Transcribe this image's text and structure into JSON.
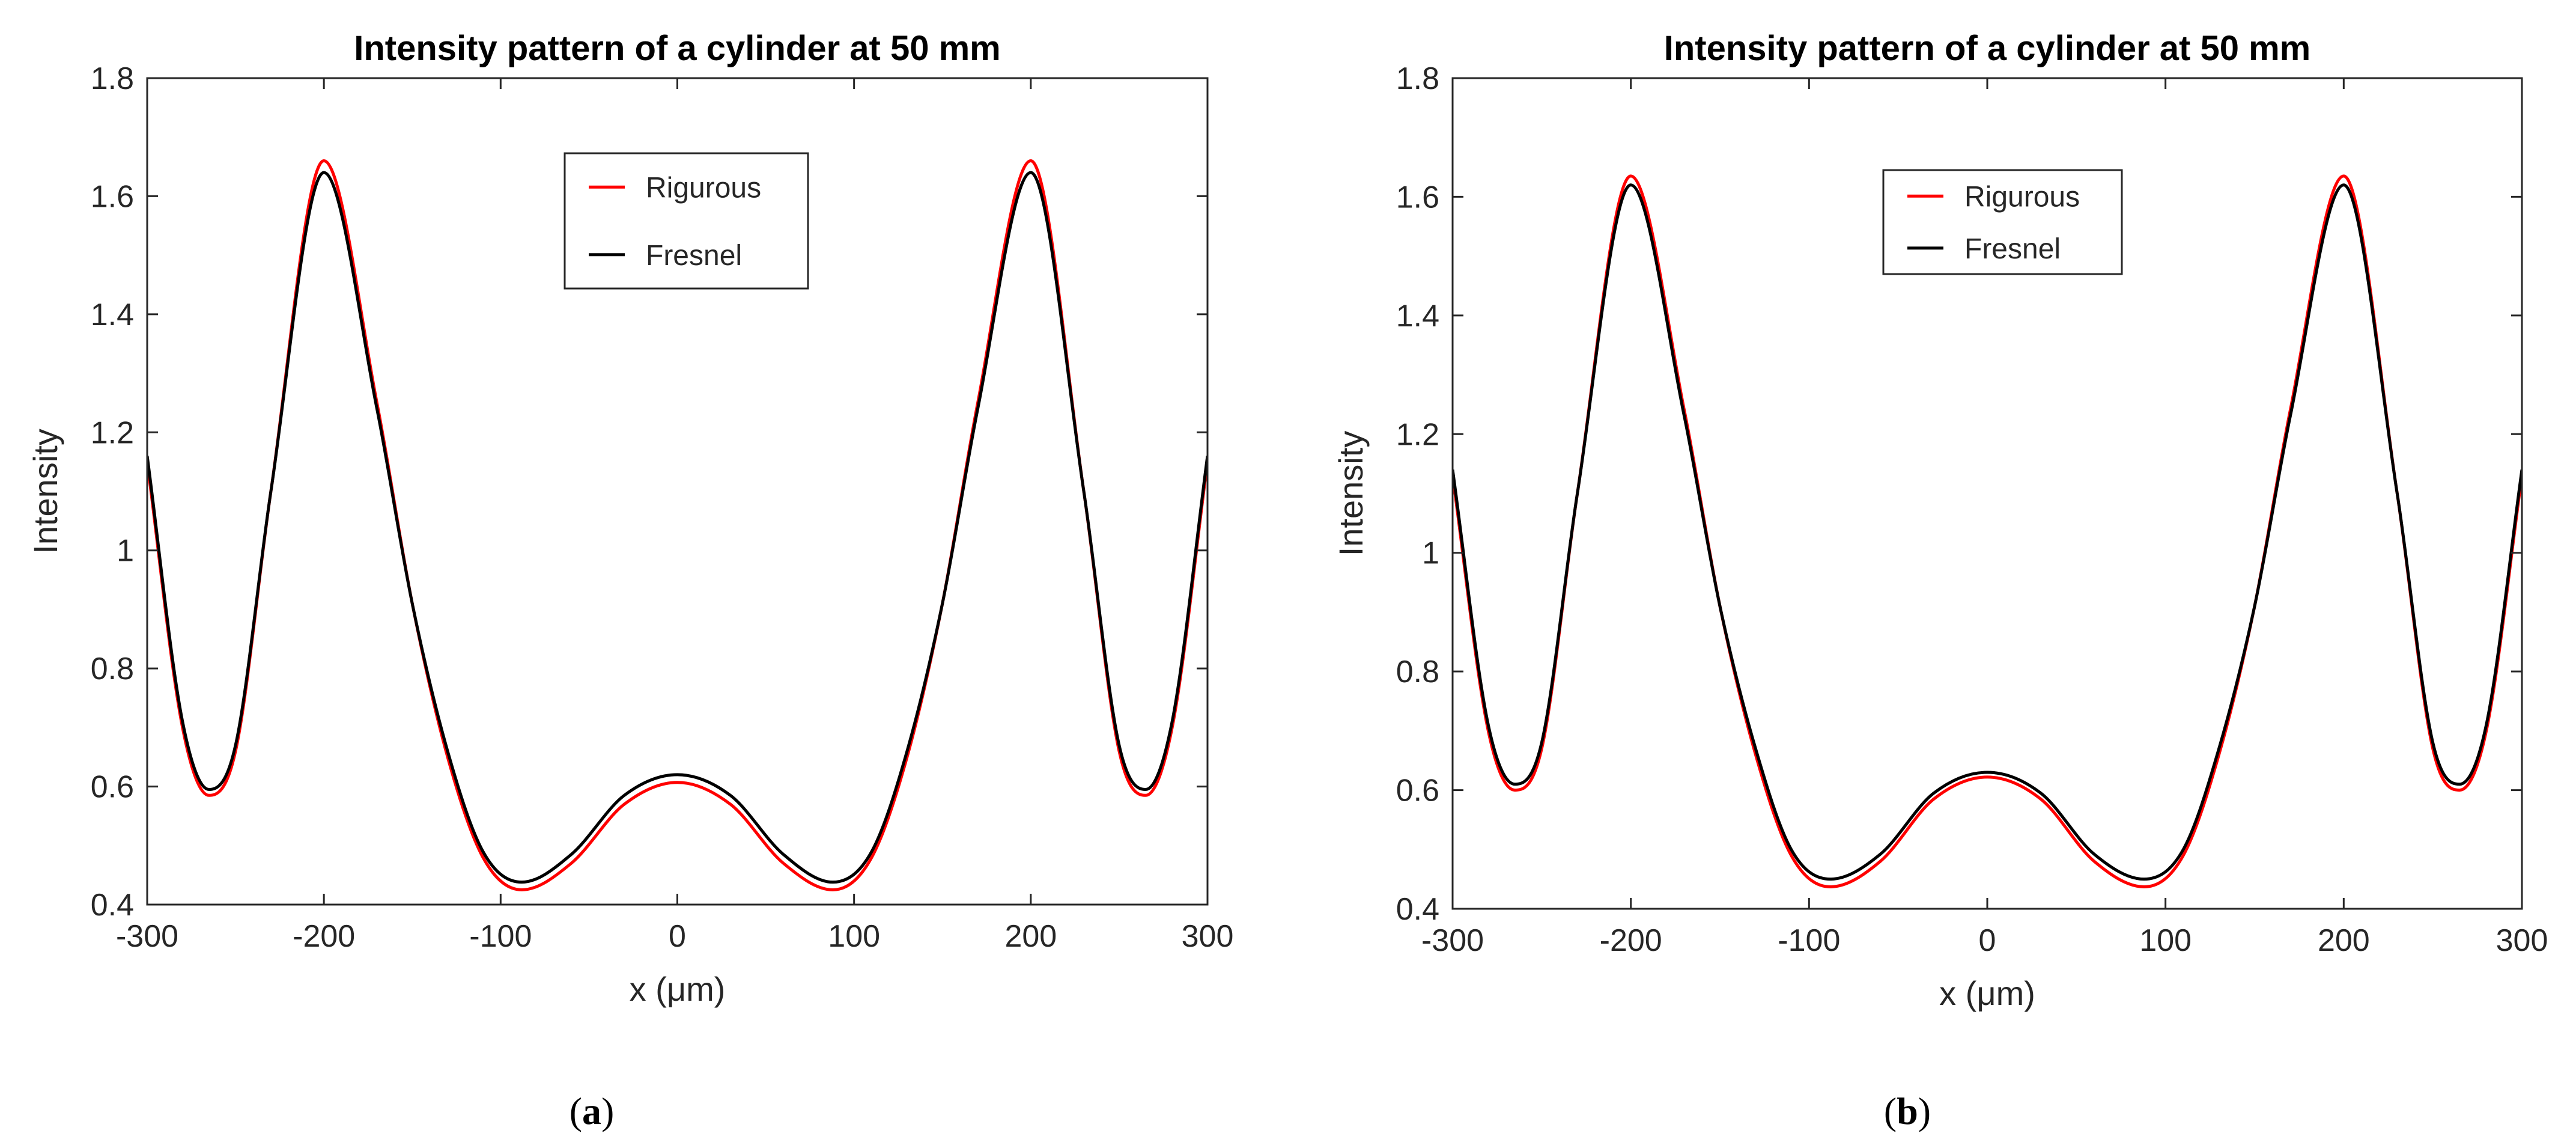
{
  "chart_data": [
    {
      "type": "line",
      "panel_label": "a",
      "title": "Intensity pattern of a cylinder at 50 mm",
      "xlabel": "x (μm)",
      "ylabel": "Intensity",
      "xlim": [
        -300,
        300
      ],
      "ylim": [
        0.4,
        1.8
      ],
      "xticks": [
        -300,
        -200,
        -100,
        0,
        100,
        200,
        300
      ],
      "yticks": [
        0.4,
        0.6,
        0.8,
        1,
        1.2,
        1.4,
        1.6,
        1.8
      ],
      "ytick_labels": [
        "0.4",
        "0.6",
        "0.8",
        "1",
        "1.2",
        "1.4",
        "1.6",
        "1.8"
      ],
      "legend_position": "upper-center",
      "series": [
        {
          "name": "Rigurous",
          "color": "#ff0000",
          "x": [
            -300,
            -280,
            -265,
            -250,
            -230,
            -200,
            -170,
            -150,
            -130,
            -110,
            -88,
            -60,
            -30,
            0,
            30,
            60,
            88,
            110,
            130,
            150,
            170,
            200,
            230,
            250,
            265,
            280,
            300
          ],
          "y": [
            1.15,
            0.7,
            0.585,
            0.66,
            1.1,
            1.66,
            1.25,
            0.91,
            0.65,
            0.48,
            0.425,
            0.47,
            0.57,
            0.607,
            0.57,
            0.47,
            0.425,
            0.48,
            0.65,
            0.91,
            1.25,
            1.66,
            1.1,
            0.66,
            0.585,
            0.7,
            1.15
          ]
        },
        {
          "name": "Fresnel",
          "color": "#000000",
          "x": [
            -300,
            -280,
            -265,
            -250,
            -230,
            -200,
            -170,
            -150,
            -130,
            -110,
            -88,
            -60,
            -30,
            0,
            30,
            60,
            88,
            110,
            130,
            150,
            170,
            200,
            230,
            250,
            265,
            280,
            300
          ],
          "y": [
            1.16,
            0.71,
            0.595,
            0.67,
            1.1,
            1.64,
            1.24,
            0.91,
            0.66,
            0.49,
            0.438,
            0.485,
            0.585,
            0.62,
            0.585,
            0.485,
            0.438,
            0.49,
            0.66,
            0.91,
            1.24,
            1.64,
            1.1,
            0.67,
            0.595,
            0.71,
            1.16
          ]
        }
      ]
    },
    {
      "type": "line",
      "panel_label": "b",
      "title": "Intensity pattern of a cylinder at 50 mm",
      "xlabel": "x (μm)",
      "ylabel": "Intensity",
      "xlim": [
        -300,
        300
      ],
      "ylim": [
        0.4,
        1.8
      ],
      "xticks": [
        -300,
        -200,
        -100,
        0,
        100,
        200,
        300
      ],
      "yticks": [
        0.4,
        0.6,
        0.8,
        1,
        1.2,
        1.4,
        1.6,
        1.8
      ],
      "ytick_labels": [
        "0.4",
        "0.6",
        "0.8",
        "1",
        "1.2",
        "1.4",
        "1.6",
        "1.8"
      ],
      "legend_position": "upper-center",
      "series": [
        {
          "name": "Rigurous",
          "color": "#ff0000",
          "x": [
            -300,
            -280,
            -265,
            -250,
            -230,
            -200,
            -170,
            -150,
            -130,
            -110,
            -88,
            -60,
            -30,
            0,
            30,
            60,
            88,
            110,
            130,
            150,
            170,
            200,
            230,
            250,
            265,
            280,
            300
          ],
          "y": [
            1.13,
            0.7,
            0.6,
            0.67,
            1.1,
            1.635,
            1.24,
            0.91,
            0.66,
            0.49,
            0.437,
            0.48,
            0.585,
            0.622,
            0.585,
            0.48,
            0.437,
            0.49,
            0.66,
            0.91,
            1.24,
            1.635,
            1.1,
            0.67,
            0.6,
            0.7,
            1.13
          ]
        },
        {
          "name": "Fresnel",
          "color": "#000000",
          "x": [
            -300,
            -280,
            -265,
            -250,
            -230,
            -200,
            -170,
            -150,
            -130,
            -110,
            -88,
            -60,
            -30,
            0,
            30,
            60,
            88,
            110,
            130,
            150,
            170,
            200,
            230,
            250,
            265,
            280,
            300
          ],
          "y": [
            1.14,
            0.71,
            0.61,
            0.68,
            1.1,
            1.62,
            1.23,
            0.91,
            0.67,
            0.5,
            0.45,
            0.492,
            0.595,
            0.63,
            0.595,
            0.492,
            0.45,
            0.5,
            0.67,
            0.91,
            1.23,
            1.62,
            1.1,
            0.68,
            0.61,
            0.71,
            1.14
          ]
        }
      ]
    }
  ]
}
